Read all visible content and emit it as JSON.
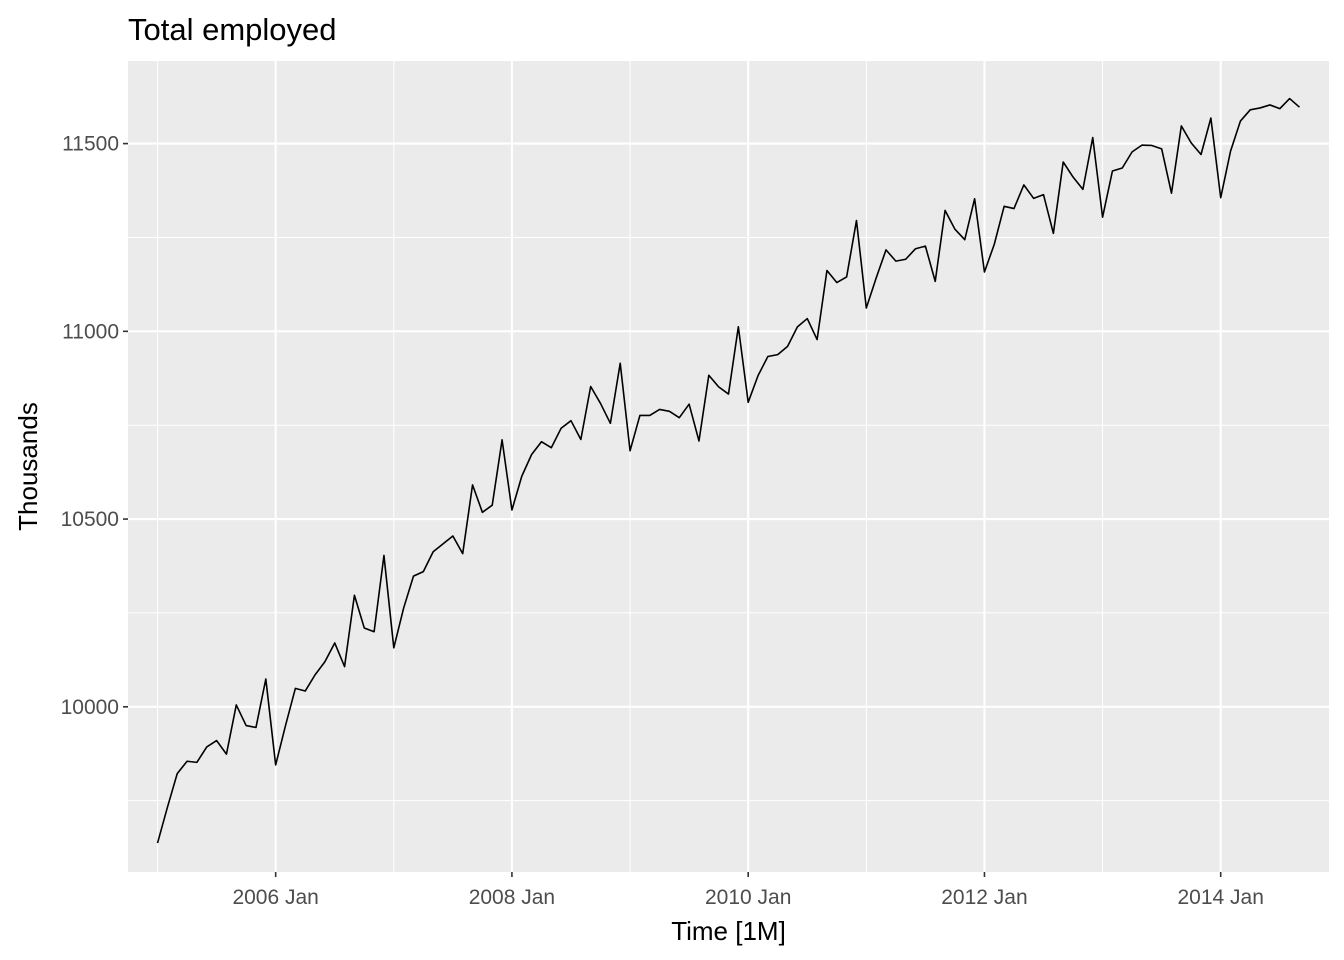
{
  "chart_data": {
    "type": "line",
    "title": "Total employed",
    "xlabel": "Time [1M]",
    "ylabel": "Thousands",
    "x_ticks": [
      "2006 Jan",
      "2008 Jan",
      "2010 Jan",
      "2012 Jan",
      "2014 Jan"
    ],
    "y_ticks": [
      "10000",
      "10500",
      "11000",
      "11500"
    ],
    "grid": true,
    "panel_background": "#ebebeb",
    "gridline_color": "#ffffff",
    "line_color": "#000000",
    "xlim": [
      "2004-10",
      "2014-12"
    ],
    "ylim": [
      9560,
      11720
    ],
    "series": [
      {
        "x": [
          "2005-01",
          "2005-02",
          "2005-03",
          "2005-04",
          "2005-05",
          "2005-06",
          "2005-07",
          "2005-08",
          "2005-09",
          "2005-10",
          "2005-11",
          "2005-12",
          "2006-01",
          "2006-02",
          "2006-03",
          "2006-04",
          "2006-05",
          "2006-06",
          "2006-07",
          "2006-08",
          "2006-09",
          "2006-10",
          "2006-11",
          "2006-12",
          "2007-01",
          "2007-02",
          "2007-03",
          "2007-04",
          "2007-05",
          "2007-06",
          "2007-07",
          "2007-08",
          "2007-09",
          "2007-10",
          "2007-11",
          "2007-12",
          "2008-01",
          "2008-02",
          "2008-03",
          "2008-04",
          "2008-05",
          "2008-06",
          "2008-07",
          "2008-08",
          "2008-09",
          "2008-10",
          "2008-11",
          "2008-12",
          "2009-01",
          "2009-02",
          "2009-03",
          "2009-04",
          "2009-05",
          "2009-06",
          "2009-07",
          "2009-08",
          "2009-09",
          "2009-10",
          "2009-11",
          "2009-12",
          "2010-01",
          "2010-02",
          "2010-03",
          "2010-04",
          "2010-05",
          "2010-06",
          "2010-07",
          "2010-08",
          "2010-09",
          "2010-10",
          "2010-11",
          "2010-12",
          "2011-01",
          "2011-02",
          "2011-03",
          "2011-04",
          "2011-05",
          "2011-06",
          "2011-07",
          "2011-08",
          "2011-09",
          "2011-10",
          "2011-11",
          "2011-12",
          "2012-01",
          "2012-02",
          "2012-03",
          "2012-04",
          "2012-05",
          "2012-06",
          "2012-07",
          "2012-08",
          "2012-09",
          "2012-10",
          "2012-11",
          "2012-12",
          "2013-01",
          "2013-02",
          "2013-03",
          "2013-04",
          "2013-05",
          "2013-06",
          "2013-07",
          "2013-08",
          "2013-09",
          "2013-10",
          "2013-11",
          "2013-12",
          "2014-01",
          "2014-02",
          "2014-03",
          "2014-04",
          "2014-05",
          "2014-06",
          "2014-07",
          "2014-08",
          "2014-09"
        ],
        "y": [
          9637,
          9732,
          9822,
          9855,
          9852,
          9893,
          9910,
          9874,
          10005,
          9950,
          9945,
          10074,
          9845,
          9950,
          10049,
          10042,
          10085,
          10120,
          10170,
          10107,
          10297,
          10210,
          10200,
          10403,
          10157,
          10263,
          10348,
          10360,
          10413,
          10434,
          10455,
          10408,
          10591,
          10518,
          10537,
          10711,
          10524,
          10614,
          10672,
          10706,
          10690,
          10742,
          10762,
          10712,
          10853,
          10808,
          10755,
          10915,
          10682,
          10776,
          10776,
          10792,
          10787,
          10770,
          10806,
          10708,
          10883,
          10852,
          10833,
          11012,
          10811,
          10882,
          10933,
          10938,
          10960,
          11012,
          11034,
          10978,
          11162,
          11130,
          11145,
          11295,
          11062,
          11142,
          11217,
          11187,
          11192,
          11220,
          11227,
          11133,
          11322,
          11272,
          11244,
          11353,
          11158,
          11232,
          11333,
          11327,
          11390,
          11354,
          11364,
          11261,
          11451,
          11411,
          11378,
          11516,
          11304,
          11427,
          11435,
          11478,
          11496,
          11495,
          11486,
          11368,
          11547,
          11502,
          11471,
          11568,
          11356,
          11480,
          11560,
          11590,
          11595,
          11603,
          11593,
          11620,
          11597
        ]
      }
    ]
  }
}
